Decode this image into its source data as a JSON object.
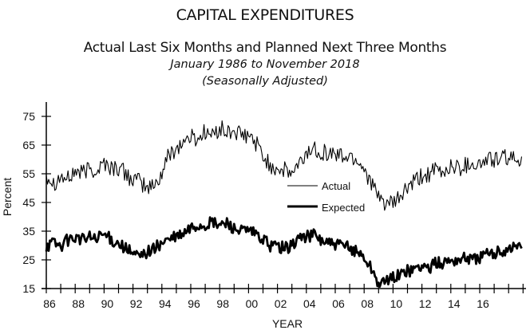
{
  "chart_data": {
    "type": "line",
    "title": "CAPITAL EXPENDITURES",
    "subtitle": "Actual Last Six Months and Planned Next Three Months",
    "date_range": "January 1986 to November 2018",
    "note": "(Seasonally Adjusted)",
    "xlabel": "YEAR",
    "ylabel": "Percent",
    "xlim": [
      1986,
      2019.2
    ],
    "ylim": [
      15,
      78
    ],
    "yticks": [
      15,
      25,
      35,
      45,
      55,
      65,
      75
    ],
    "xtick_labels": [
      "86",
      "88",
      "90",
      "92",
      "94",
      "96",
      "98",
      "00",
      "02",
      "04",
      "06",
      "08",
      "10",
      "12",
      "14",
      "16"
    ],
    "xtick_label_years": [
      1986,
      1988,
      1990,
      1992,
      1994,
      1996,
      1998,
      2000,
      2002,
      2004,
      2006,
      2008,
      2010,
      2012,
      2014,
      2016
    ],
    "grid": false,
    "legend": {
      "placement": "center-right",
      "entries": [
        {
          "name": "Actual",
          "style": "thin"
        },
        {
          "name": "Expected",
          "style": "thick"
        }
      ]
    },
    "series": [
      {
        "name": "Actual",
        "x": [
          1986.0,
          1986.5,
          1987.0,
          1987.5,
          1988.0,
          1988.5,
          1989.0,
          1989.5,
          1990.0,
          1990.5,
          1991.0,
          1991.5,
          1992.0,
          1992.5,
          1993.0,
          1993.5,
          1994.0,
          1994.5,
          1995.0,
          1995.5,
          1996.0,
          1996.5,
          1997.0,
          1997.5,
          1998.0,
          1998.5,
          1999.0,
          1999.5,
          2000.0,
          2000.5,
          2001.0,
          2001.5,
          2002.0,
          2002.5,
          2003.0,
          2003.5,
          2004.0,
          2004.5,
          2005.0,
          2005.5,
          2006.0,
          2006.5,
          2007.0,
          2007.5,
          2008.0,
          2008.5,
          2009.0,
          2009.5,
          2010.0,
          2010.5,
          2011.0,
          2011.5,
          2012.0,
          2012.5,
          2013.0,
          2013.5,
          2014.0,
          2014.5,
          2015.0,
          2015.5,
          2016.0,
          2016.5,
          2017.0,
          2017.5,
          2018.0,
          2018.5,
          2018.9
        ],
        "values": [
          55,
          52,
          54,
          53,
          56,
          55,
          57,
          56,
          59,
          57,
          57,
          55,
          53,
          52,
          50,
          51,
          55,
          62,
          64,
          66,
          68,
          67,
          70,
          68,
          71,
          69,
          70,
          68,
          68,
          66,
          61,
          58,
          57,
          56,
          55,
          58,
          62,
          64,
          63,
          62,
          62,
          61,
          61,
          60,
          57,
          52,
          46,
          45,
          44,
          47,
          50,
          52,
          54,
          55,
          56,
          55,
          58,
          57,
          58,
          59,
          58,
          60,
          60,
          60,
          61,
          59,
          61
        ]
      },
      {
        "name": "Expected",
        "x": [
          1986.0,
          1986.5,
          1987.0,
          1987.5,
          1988.0,
          1988.5,
          1989.0,
          1989.5,
          1990.0,
          1990.5,
          1991.0,
          1991.5,
          1992.0,
          1992.5,
          1993.0,
          1993.5,
          1994.0,
          1994.5,
          1995.0,
          1995.5,
          1996.0,
          1996.5,
          1997.0,
          1997.5,
          1998.0,
          1998.5,
          1999.0,
          1999.5,
          2000.0,
          2000.5,
          2001.0,
          2001.5,
          2002.0,
          2002.5,
          2003.0,
          2003.5,
          2004.0,
          2004.5,
          2005.0,
          2005.5,
          2006.0,
          2006.5,
          2007.0,
          2007.5,
          2008.0,
          2008.5,
          2009.0,
          2009.5,
          2010.0,
          2010.5,
          2011.0,
          2011.5,
          2012.0,
          2012.5,
          2013.0,
          2013.5,
          2014.0,
          2014.5,
          2015.0,
          2015.5,
          2016.0,
          2016.5,
          2017.0,
          2017.5,
          2018.0,
          2018.5,
          2018.9
        ],
        "values": [
          30,
          31,
          30,
          32,
          33,
          32,
          33,
          32,
          34,
          32,
          31,
          29,
          27,
          26,
          28,
          29,
          31,
          32,
          33,
          34,
          36,
          37,
          37,
          38,
          37,
          38,
          36,
          35,
          35,
          34,
          32,
          30,
          30,
          29,
          30,
          33,
          33,
          34,
          32,
          31,
          30,
          30,
          29,
          28,
          26,
          22,
          17,
          17,
          19,
          20,
          21,
          22,
          23,
          22,
          24,
          24,
          25,
          25,
          26,
          25,
          26,
          27,
          27,
          28,
          29,
          30,
          29
        ]
      }
    ]
  }
}
